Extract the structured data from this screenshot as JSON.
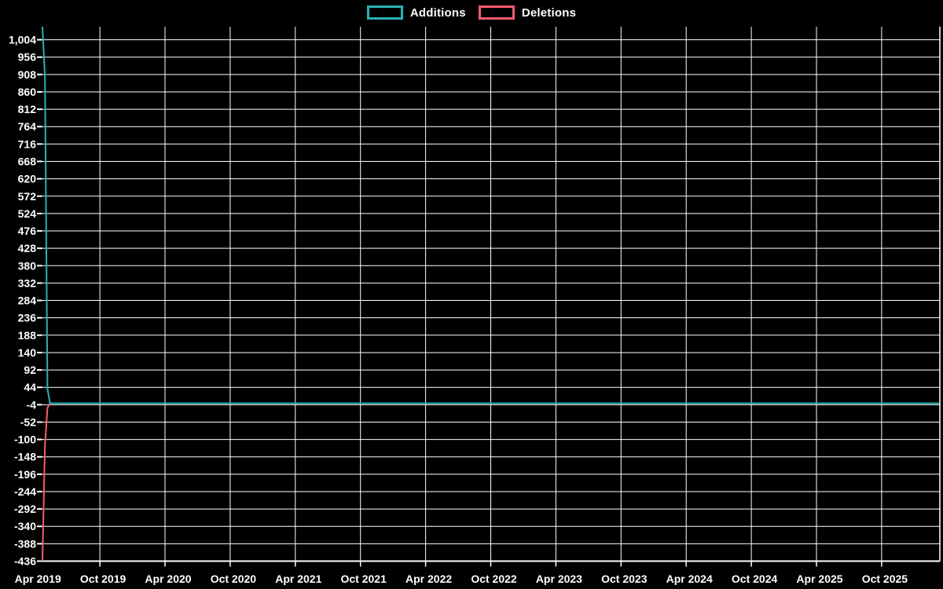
{
  "page": {
    "background": "#000000",
    "text_color": "#ffffff",
    "grid_color": "#ffffff"
  },
  "chart_data": {
    "type": "line",
    "title": "",
    "subtitle": "",
    "xlabel": "",
    "ylabel": "",
    "legend_position": "top-center",
    "grid": true,
    "background": "#000000",
    "grid_color": "#ffffff",
    "x_tick_labels": [
      "Apr 2019",
      "Oct 2019",
      "Apr 2020",
      "Oct 2020",
      "Apr 2021",
      "Oct 2021",
      "Apr 2022",
      "Oct 2022",
      "Apr 2023",
      "Oct 2023",
      "Apr 2024",
      "Oct 2024",
      "Apr 2025",
      "Oct 2025"
    ],
    "y_tick_values": [
      1004,
      956,
      908,
      860,
      812,
      764,
      716,
      668,
      620,
      572,
      524,
      476,
      428,
      380,
      332,
      284,
      236,
      188,
      140,
      92,
      44,
      -4,
      -52,
      -100,
      -148,
      -196,
      -244,
      -292,
      -340,
      -388,
      -436
    ],
    "ylim": [
      -436,
      1040
    ],
    "xlim_weeks": [
      0,
      358
    ],
    "x_axis_note": "weekly data from Apr 2019 through late 2025",
    "series": [
      {
        "name": "Deletions",
        "color": "#f65c70",
        "points": [
          [
            0,
            -436
          ],
          [
            1,
            -115
          ],
          [
            2,
            -13
          ],
          [
            3,
            0
          ],
          [
            358,
            0
          ]
        ],
        "description": "deletions spike in first weeks then ~0 for all later weeks"
      },
      {
        "name": "Additions",
        "color": "#2cb1b1",
        "points": [
          [
            0,
            1040
          ],
          [
            1,
            900
          ],
          [
            2,
            40
          ],
          [
            3,
            0
          ],
          [
            358,
            0
          ]
        ],
        "description": "additions spike in first weeks then ~0 for all later weeks"
      }
    ]
  }
}
